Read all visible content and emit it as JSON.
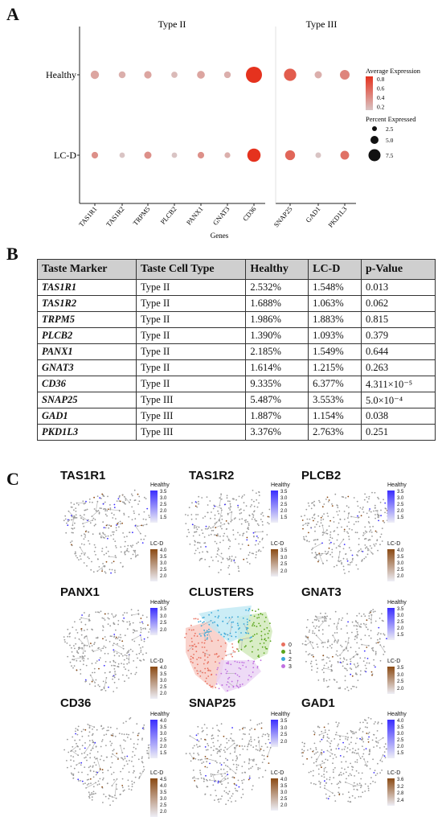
{
  "panels": {
    "a": "A",
    "b": "B",
    "c": "C"
  },
  "colors": {
    "low": "#d9c4c4",
    "high": "#e5321e",
    "healthy_hi": "#3a2dff",
    "lcd_hi": "#8b4a13"
  },
  "chart_data": [
    {
      "type": "scatter",
      "subtype": "dot-plot",
      "xlabel": "Genes",
      "ylabel": "",
      "groups": [
        {
          "label": "Type II"
        },
        {
          "label": "Type III"
        }
      ],
      "categories": [
        "TAS1R1",
        "TAS1R2",
        "TRPM5",
        "PLCB2",
        "PANX1",
        "GNAT3",
        "CD36",
        "SNAP25",
        "GAD1",
        "PKD1L3"
      ],
      "rows": [
        "Healthy",
        "LC-D"
      ],
      "series": [
        {
          "name": "Healthy",
          "avg_expression": [
            0.35,
            0.3,
            0.35,
            0.25,
            0.35,
            0.3,
            0.95,
            0.7,
            0.3,
            0.5
          ],
          "pct_expressed": [
            2.532,
            1.688,
            1.986,
            1.39,
            2.185,
            1.614,
            9.335,
            5.487,
            1.887,
            3.376
          ]
        },
        {
          "name": "LC-D",
          "avg_expression": [
            0.45,
            0.2,
            0.45,
            0.2,
            0.45,
            0.3,
            0.95,
            0.65,
            0.2,
            0.6
          ],
          "pct_expressed": [
            1.548,
            1.063,
            1.883,
            1.093,
            1.549,
            1.215,
            6.377,
            3.553,
            1.154,
            2.763
          ]
        }
      ],
      "legend": {
        "color_title": "Average Expression",
        "color_ticks": [
          "0.8",
          "0.6",
          "0.4",
          "0.2"
        ],
        "size_title": "Percent Expressed",
        "size_ticks": [
          "2.5",
          "5.0",
          "7.5"
        ],
        "position": "right"
      }
    },
    {
      "type": "table",
      "columns": [
        "Taste Marker",
        "Taste Cell Type",
        "Healthy",
        "LC-D",
        "p-Value"
      ],
      "rows": [
        [
          "TAS1R1",
          "Type II",
          "2.532%",
          "1.548%",
          "0.013"
        ],
        [
          "TAS1R2",
          "Type II",
          "1.688%",
          "1.063%",
          "0.062"
        ],
        [
          "TRPM5",
          "Type II",
          "1.986%",
          "1.883%",
          "0.815"
        ],
        [
          "PLCB2",
          "Type II",
          "1.390%",
          "1.093%",
          "0.379"
        ],
        [
          "PANX1",
          "Type II",
          "2.185%",
          "1.549%",
          "0.644"
        ],
        [
          "GNAT3",
          "Type II",
          "1.614%",
          "1.215%",
          "0.263"
        ],
        [
          "CD36",
          "Type II",
          "9.335%",
          "6.377%",
          "4.311×10⁻⁵"
        ],
        [
          "SNAP25",
          "Type III",
          "5.487%",
          "3.553%",
          "5.0×10⁻⁴"
        ],
        [
          "GAD1",
          "Type III",
          "1.887%",
          "1.154%",
          "0.038"
        ],
        [
          "PKD1L3",
          "Type III",
          "3.376%",
          "2.763%",
          "0.251"
        ]
      ]
    }
  ],
  "umaps": [
    {
      "title": "TAS1R1",
      "healthy_ticks": [
        "3.5",
        "3.0",
        "2.5",
        "2.0",
        "1.5"
      ],
      "lcd_ticks": [
        "4.0",
        "3.5",
        "3.0",
        "2.5",
        "2.0"
      ]
    },
    {
      "title": "TAS1R2",
      "healthy_ticks": [
        "3.5",
        "3.0",
        "2.5",
        "2.0",
        "1.5"
      ],
      "lcd_ticks": [
        "3.5",
        "3.0",
        "2.5",
        "2.0"
      ]
    },
    {
      "title": "PLCB2",
      "healthy_ticks": [
        "3.5",
        "3.0",
        "2.5",
        "2.0",
        "1.5"
      ],
      "lcd_ticks": [
        "4.0",
        "3.5",
        "3.0",
        "2.5",
        "2.0"
      ]
    },
    {
      "title": "PANX1",
      "healthy_ticks": [
        "3.5",
        "3.0",
        "2.5",
        "2.0"
      ],
      "lcd_ticks": [
        "4.0",
        "3.5",
        "3.0",
        "2.5",
        "2.0"
      ]
    },
    {
      "title": "CLUSTERS",
      "cluster_labels": [
        "0",
        "1",
        "2",
        "3"
      ],
      "cluster_colors": [
        "#e8705f",
        "#5aa51c",
        "#3aa8d8",
        "#c070e0"
      ]
    },
    {
      "title": "GNAT3",
      "healthy_ticks": [
        "3.5",
        "3.0",
        "2.5",
        "2.0",
        "1.5"
      ],
      "lcd_ticks": [
        "3.5",
        "3.0",
        "2.5",
        "2.0"
      ]
    },
    {
      "title": "CD36",
      "healthy_ticks": [
        "4.0",
        "3.5",
        "3.0",
        "2.5",
        "2.0",
        "1.5"
      ],
      "lcd_ticks": [
        "4.5",
        "4.0",
        "3.5",
        "3.0",
        "2.5",
        "2.0"
      ]
    },
    {
      "title": "SNAP25",
      "healthy_ticks": [
        "3.5",
        "3.0",
        "2.5",
        "2.0"
      ],
      "lcd_ticks": [
        "4.0",
        "3.5",
        "3.0",
        "2.5",
        "2.0"
      ]
    },
    {
      "title": "GAD1",
      "healthy_ticks": [
        "4.0",
        "3.5",
        "3.0",
        "2.5",
        "2.0",
        "1.5"
      ],
      "lcd_ticks": [
        "3.6",
        "3.2",
        "2.8",
        "2.4"
      ]
    }
  ],
  "umap_legend": {
    "healthy": "Healthy",
    "lcd": "LC-D"
  }
}
